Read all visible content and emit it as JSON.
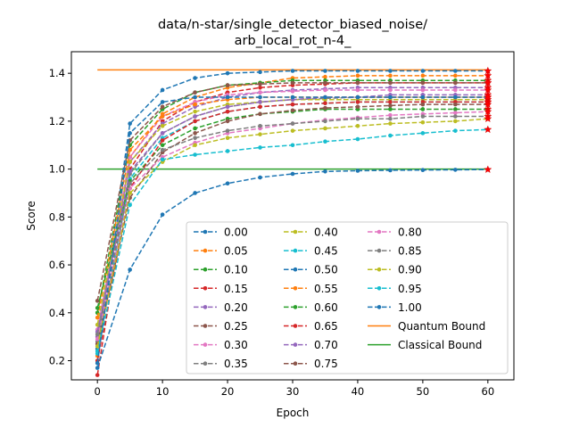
{
  "chart_data": {
    "type": "line",
    "title_lines": [
      "data/n-star/single_detector_biased_noise/",
      "arb_local_rot_n-4_"
    ],
    "xlabel": "Epoch",
    "ylabel": "Score",
    "xlim": [
      -4,
      64
    ],
    "ylim": [
      0.12,
      1.49
    ],
    "xticks": [
      0,
      10,
      20,
      30,
      40,
      50,
      60
    ],
    "yticks": [
      0.2,
      0.4,
      0.6,
      0.8,
      1.0,
      1.2,
      1.4
    ],
    "ytick_labels": [
      "0.2",
      "0.4",
      "0.6",
      "0.8",
      "1.0",
      "1.2",
      "1.4"
    ],
    "x": [
      0,
      5,
      10,
      15,
      20,
      25,
      30,
      35,
      40,
      45,
      50,
      55,
      60
    ],
    "legend_placement": "lower-right",
    "legend_columns": 3,
    "series": [
      {
        "name": "0.00",
        "color": "#1f77b4",
        "values": [
          0.25,
          1.19,
          1.33,
          1.38,
          1.4,
          1.405,
          1.41,
          1.41,
          1.41,
          1.41,
          1.41,
          1.41,
          1.41
        ]
      },
      {
        "name": "0.05",
        "color": "#ff7f0e",
        "values": [
          0.22,
          1.05,
          1.23,
          1.3,
          1.34,
          1.36,
          1.38,
          1.385,
          1.39,
          1.39,
          1.39,
          1.39,
          1.39
        ]
      },
      {
        "name": "0.10",
        "color": "#2ca02c",
        "values": [
          0.4,
          1.1,
          1.25,
          1.32,
          1.35,
          1.36,
          1.37,
          1.37,
          1.37,
          1.37,
          1.37,
          1.37,
          1.37
        ]
      },
      {
        "name": "0.15",
        "color": "#d62728",
        "values": [
          0.14,
          1.0,
          1.2,
          1.28,
          1.32,
          1.34,
          1.35,
          1.355,
          1.36,
          1.36,
          1.36,
          1.36,
          1.36
        ]
      },
      {
        "name": "0.20",
        "color": "#9467bd",
        "values": [
          0.3,
          1.03,
          1.19,
          1.26,
          1.3,
          1.32,
          1.33,
          1.335,
          1.34,
          1.34,
          1.34,
          1.34,
          1.34
        ]
      },
      {
        "name": "0.25",
        "color": "#8c564b",
        "values": [
          0.45,
          1.12,
          1.26,
          1.32,
          1.35,
          1.355,
          1.36,
          1.36,
          1.36,
          1.36,
          1.36,
          1.36,
          1.36
        ]
      },
      {
        "name": "0.30",
        "color": "#e377c2",
        "values": [
          0.33,
          1.05,
          1.22,
          1.28,
          1.31,
          1.32,
          1.325,
          1.33,
          1.33,
          1.33,
          1.33,
          1.33,
          1.33
        ]
      },
      {
        "name": "0.35",
        "color": "#7f7f7f",
        "values": [
          0.28,
          0.98,
          1.15,
          1.22,
          1.26,
          1.28,
          1.29,
          1.295,
          1.3,
          1.3,
          1.3,
          1.3,
          1.3
        ]
      },
      {
        "name": "0.40",
        "color": "#bcbd22",
        "values": [
          0.35,
          1.03,
          1.18,
          1.24,
          1.27,
          1.28,
          1.29,
          1.29,
          1.29,
          1.29,
          1.29,
          1.29,
          1.29
        ]
      },
      {
        "name": "0.45",
        "color": "#17becf",
        "values": [
          0.24,
          0.96,
          1.13,
          1.2,
          1.24,
          1.26,
          1.27,
          1.275,
          1.28,
          1.28,
          1.28,
          1.28,
          1.28
        ]
      },
      {
        "name": "0.50",
        "color": "#1f77b4",
        "values": [
          0.17,
          0.58,
          0.81,
          0.9,
          0.94,
          0.965,
          0.98,
          0.99,
          0.993,
          0.995,
          0.996,
          0.997,
          0.998
        ]
      },
      {
        "name": "0.55",
        "color": "#ff7f0e",
        "values": [
          0.38,
          1.08,
          1.22,
          1.27,
          1.29,
          1.3,
          1.3,
          1.3,
          1.3,
          1.3,
          1.3,
          1.3,
          1.3
        ]
      },
      {
        "name": "0.60",
        "color": "#2ca02c",
        "values": [
          0.42,
          0.95,
          1.1,
          1.17,
          1.21,
          1.23,
          1.24,
          1.25,
          1.25,
          1.25,
          1.25,
          1.25,
          1.25
        ]
      },
      {
        "name": "0.65",
        "color": "#d62728",
        "values": [
          0.2,
          0.92,
          1.12,
          1.2,
          1.24,
          1.26,
          1.27,
          1.275,
          1.28,
          1.28,
          1.28,
          1.28,
          1.28
        ]
      },
      {
        "name": "0.70",
        "color": "#9467bd",
        "values": [
          0.32,
          0.99,
          1.15,
          1.22,
          1.26,
          1.28,
          1.29,
          1.3,
          1.3,
          1.31,
          1.31,
          1.31,
          1.31
        ]
      },
      {
        "name": "0.75",
        "color": "#8c564b",
        "values": [
          0.27,
          0.88,
          1.07,
          1.15,
          1.2,
          1.23,
          1.245,
          1.255,
          1.26,
          1.265,
          1.27,
          1.27,
          1.27
        ]
      },
      {
        "name": "0.80",
        "color": "#e377c2",
        "values": [
          0.29,
          0.92,
          1.05,
          1.11,
          1.15,
          1.17,
          1.19,
          1.205,
          1.215,
          1.225,
          1.23,
          1.235,
          1.24
        ]
      },
      {
        "name": "0.85",
        "color": "#7f7f7f",
        "values": [
          0.31,
          0.94,
          1.08,
          1.13,
          1.16,
          1.18,
          1.19,
          1.2,
          1.21,
          1.21,
          1.22,
          1.22,
          1.22
        ]
      },
      {
        "name": "0.90",
        "color": "#bcbd22",
        "values": [
          0.26,
          0.9,
          1.03,
          1.1,
          1.13,
          1.145,
          1.16,
          1.17,
          1.18,
          1.19,
          1.195,
          1.2,
          1.21
        ]
      },
      {
        "name": "0.95",
        "color": "#17becf",
        "values": [
          0.23,
          0.85,
          1.04,
          1.06,
          1.075,
          1.09,
          1.1,
          1.115,
          1.125,
          1.14,
          1.15,
          1.16,
          1.165
        ]
      },
      {
        "name": "1.00",
        "color": "#1f77b4",
        "values": [
          0.19,
          1.15,
          1.28,
          1.3,
          1.3,
          1.3,
          1.3,
          1.3,
          1.3,
          1.3,
          1.3,
          1.3,
          1.3
        ]
      }
    ],
    "bounds": [
      {
        "name": "Quantum Bound",
        "color": "#ff7f0e",
        "value": 1.4142
      },
      {
        "name": "Classical Bound",
        "color": "#2ca02c",
        "value": 1.0
      }
    ],
    "final_marker": "red-star"
  }
}
